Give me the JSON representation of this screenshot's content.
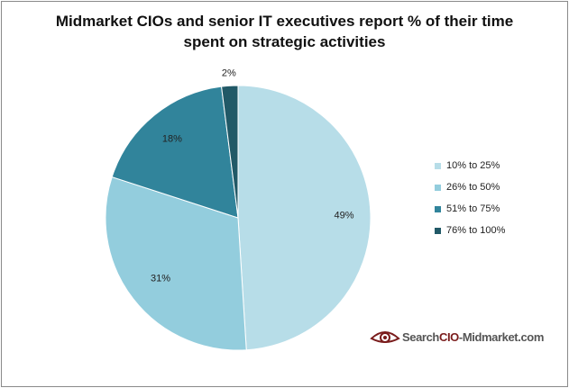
{
  "chart_data": {
    "type": "pie",
    "title_lines": [
      "Midmarket CIOs and senior IT executives report % of their time",
      "spent on strategic activities"
    ],
    "categories": [
      "10% to 25%",
      "26% to 50%",
      "51% to 75%",
      "76% to 100%"
    ],
    "values": [
      49,
      31,
      18,
      2
    ],
    "data_labels": [
      "49%",
      "31%",
      "18%",
      "2%"
    ],
    "colors": [
      "#b7dde8",
      "#93cddd",
      "#31849b",
      "#215967"
    ],
    "legend_position": "right",
    "start_angle": "12 o'clock",
    "direction": "clockwise"
  },
  "logo": {
    "part1": "Search",
    "part2": "CIO",
    "part3": "-Midmarket.com",
    "icon": "eye-icon"
  }
}
